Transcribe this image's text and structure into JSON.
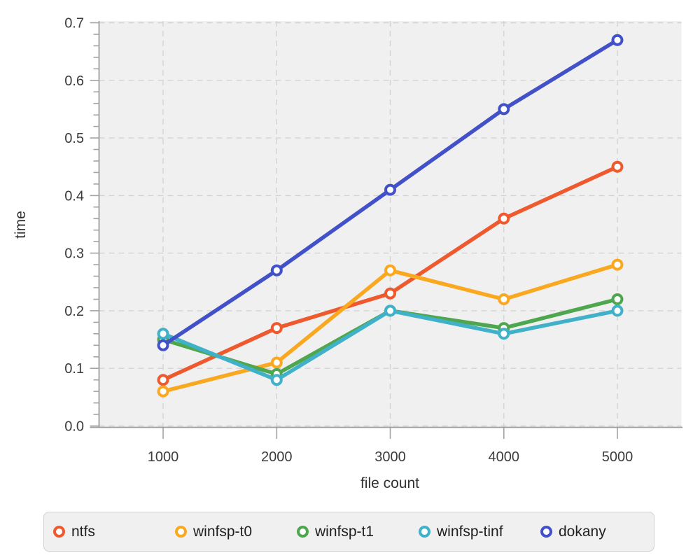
{
  "chart_data": {
    "type": "line",
    "title": "",
    "xlabel": "file count",
    "ylabel": "time",
    "x": [
      1000,
      2000,
      3000,
      4000,
      5000
    ],
    "xticks": [
      "1000",
      "2000",
      "3000",
      "4000",
      "5000"
    ],
    "yticks": [
      "0.0",
      "0.1",
      "0.2",
      "0.3",
      "0.4",
      "0.5",
      "0.6",
      "0.7"
    ],
    "ytick_values": [
      0.0,
      0.1,
      0.2,
      0.3,
      0.4,
      0.5,
      0.6,
      0.7
    ],
    "ylim": [
      0.0,
      0.7
    ],
    "xlim": [
      440,
      5560
    ],
    "y_minor_step": 0.02,
    "grid": "dashed",
    "legend_position": "bottom",
    "series": [
      {
        "name": "ntfs",
        "color": "#ee5a2e",
        "values": [
          0.08,
          0.17,
          0.23,
          0.36,
          0.45
        ]
      },
      {
        "name": "winfsp-t0",
        "color": "#fba821",
        "values": [
          0.06,
          0.11,
          0.27,
          0.22,
          0.28
        ]
      },
      {
        "name": "winfsp-t1",
        "color": "#4ea74e",
        "values": [
          0.15,
          0.09,
          0.2,
          0.17,
          0.22
        ]
      },
      {
        "name": "winfsp-tinf",
        "color": "#41b1c9",
        "values": [
          0.16,
          0.08,
          0.2,
          0.16,
          0.2
        ]
      },
      {
        "name": "dokany",
        "color": "#4351c8",
        "values": [
          0.14,
          0.27,
          0.41,
          0.55,
          0.67
        ]
      }
    ],
    "style": {
      "panel_bg": "#f0f0f1",
      "grid_color": "#d3d3d3",
      "spine_color": "#9e9e9e",
      "tick_color": "#a3a3a3",
      "marker_fill": "#ffffff"
    }
  }
}
